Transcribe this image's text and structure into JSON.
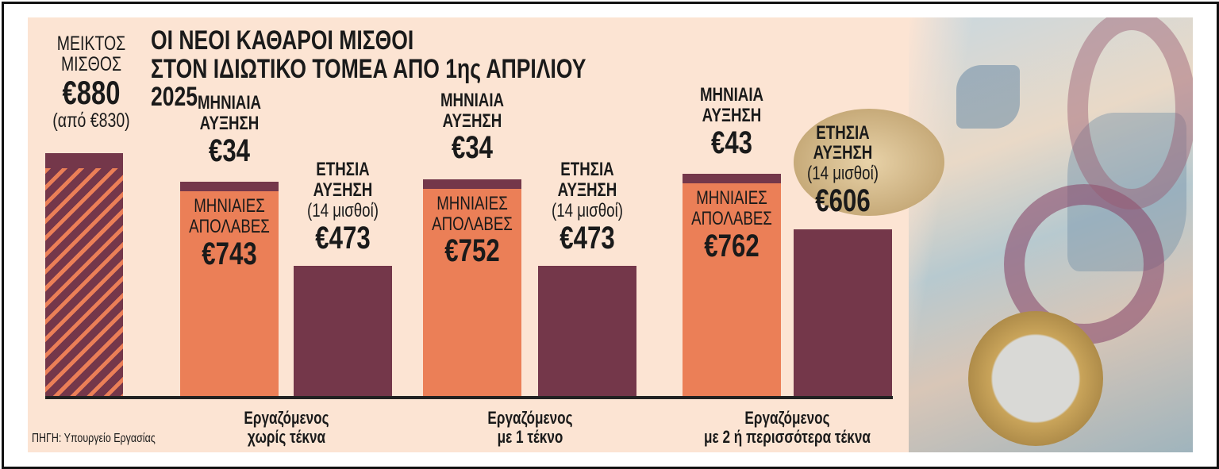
{
  "colors": {
    "dark": "#74374a",
    "orange": "#eb7f57",
    "background": "#fce4d3"
  },
  "chart_data": {
    "type": "bar",
    "title": [
      "ΟΙ ΝΕΟΙ ΚΑΘΑΡΟΙ ΜΙΣΘΟΙ",
      "ΣΤΟΝ ΙΔΙΩΤΙΚΟ ΤΟΜΕΑ ΑΠΟ 1ης ΑΠΡΙΛΙΟΥ 2025"
    ],
    "gross": {
      "label": [
        "ΜΕΙΚΤΟΣ",
        "ΜΙΣΘΟΣ"
      ],
      "value_label": "€880",
      "previous_label": "(από €830)",
      "value": 880,
      "previous": 830
    },
    "groups": [
      {
        "category": [
          "Εργαζόμενος",
          "χωρίς τέκνα"
        ],
        "monthly_net": 743,
        "monthly_net_label": "€743",
        "monthly_increase": 34,
        "monthly_increase_label": "€34",
        "annual_increase": 473,
        "annual_increase_label": "€473"
      },
      {
        "category": [
          "Εργαζόμενος",
          "με 1 τέκνο"
        ],
        "monthly_net": 752,
        "monthly_net_label": "€752",
        "monthly_increase": 34,
        "monthly_increase_label": "€34",
        "annual_increase": 473,
        "annual_increase_label": "€473"
      },
      {
        "category": [
          "Εργαζόμενος",
          "με 2 ή περισσότερα τέκνα"
        ],
        "monthly_net": 762,
        "monthly_net_label": "€762",
        "monthly_increase": 43,
        "monthly_increase_label": "€43",
        "annual_increase": 606,
        "annual_increase_label": "€606"
      }
    ],
    "labels": {
      "monthly_increase": [
        "ΜΗΝΙΑΙΑ",
        "ΑΥΞΗΣΗ"
      ],
      "monthly_net": [
        "ΜΗΝΙΑΙΕΣ",
        "ΑΠΟΛΑΒΕΣ"
      ],
      "annual_increase": [
        "ΕΤΗΣΙΑ",
        "ΑΥΞΗΣΗ"
      ],
      "annual_note": "(14 μισθοί)"
    },
    "source": "ΠΗΓΗ: Υπουργείο Εργασίας"
  }
}
